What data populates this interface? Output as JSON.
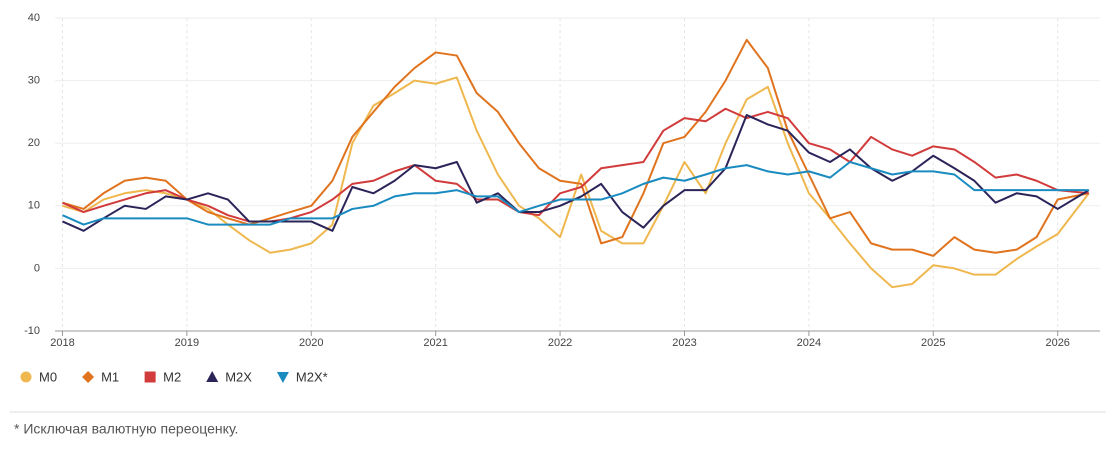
{
  "chart_data": {
    "type": "line",
    "x": [
      2018,
      2018.17,
      2018.33,
      2018.5,
      2018.67,
      2018.83,
      2019,
      2019.17,
      2019.33,
      2019.5,
      2019.67,
      2019.83,
      2020,
      2020.17,
      2020.33,
      2020.5,
      2020.67,
      2020.83,
      2021,
      2021.17,
      2021.33,
      2021.5,
      2021.67,
      2021.83,
      2022,
      2022.17,
      2022.33,
      2022.5,
      2022.67,
      2022.83,
      2023,
      2023.17,
      2023.33,
      2023.5,
      2023.67,
      2023.83,
      2024,
      2024.17,
      2024.33,
      2024.5,
      2024.67,
      2024.83,
      2025,
      2025.17,
      2025.33,
      2025.5,
      2025.67,
      2025.83,
      2026,
      2026.25
    ],
    "series": [
      {
        "name": "M0",
        "color": "#efb84e",
        "marker": "circle",
        "values": [
          10,
          9,
          11,
          12,
          12.5,
          12,
          11,
          9.5,
          7,
          4.5,
          2.5,
          3,
          4,
          7,
          20,
          26,
          28,
          30,
          29.5,
          30.5,
          22,
          15,
          10,
          8,
          5,
          15,
          6,
          4,
          4,
          10,
          17,
          12,
          20,
          27,
          29,
          20,
          12,
          8,
          4,
          0,
          -3,
          -2.5,
          0.5,
          0,
          -1,
          -1,
          1.5,
          3.5,
          5.5,
          12
        ]
      },
      {
        "name": "M1",
        "color": "#e0731e",
        "marker": "diamond",
        "values": [
          10.5,
          9.5,
          12,
          14,
          14.5,
          14,
          11,
          9,
          8,
          7,
          8,
          9,
          10,
          14,
          21,
          25,
          29,
          32,
          34.5,
          34,
          28,
          25,
          20,
          16,
          14,
          13.5,
          4,
          5,
          12,
          20,
          21,
          25,
          30,
          36.5,
          32,
          22,
          15,
          8,
          9,
          4,
          3,
          3,
          2,
          5,
          3,
          2.5,
          3,
          5,
          11,
          12
        ]
      },
      {
        "name": "M2",
        "color": "#d13b3b",
        "marker": "square",
        "values": [
          10.5,
          9,
          10,
          11,
          12,
          12.5,
          11,
          10,
          8.5,
          7.5,
          7.5,
          8,
          9,
          11,
          13.5,
          14,
          15.5,
          16.5,
          14,
          13.5,
          11,
          11,
          9,
          8.5,
          12,
          13,
          16,
          16.5,
          17,
          22,
          24,
          23.5,
          25.5,
          24,
          25,
          24,
          20,
          19,
          17,
          21,
          19,
          18,
          19.5,
          19,
          17,
          14.5,
          15,
          14,
          12.5,
          12
        ]
      },
      {
        "name": "M2X",
        "color": "#2b2459",
        "marker": "triangle-up",
        "values": [
          7.5,
          6,
          8,
          10,
          9.5,
          11.5,
          11,
          12,
          11,
          7.5,
          7.5,
          7.5,
          7.5,
          6,
          13,
          12,
          14,
          16.5,
          16,
          17,
          10.5,
          12,
          9,
          9,
          10,
          11.5,
          13.5,
          9,
          6.5,
          10,
          12.5,
          12.5,
          16,
          24.5,
          23,
          22,
          18.5,
          17,
          19,
          16,
          14,
          15.5,
          18,
          16,
          14,
          10.5,
          12,
          11.5,
          9.5,
          12.5
        ]
      },
      {
        "name": "M2X*",
        "color": "#1a8bc0",
        "marker": "triangle-down",
        "values": [
          8.5,
          7,
          8,
          8,
          8,
          8,
          8,
          7,
          7,
          7,
          7,
          8,
          8,
          8,
          9.5,
          10,
          11.5,
          12,
          12,
          12.5,
          11.5,
          11.5,
          9,
          10,
          11,
          11,
          11,
          12,
          13.5,
          14.5,
          14,
          15,
          16,
          16.5,
          15.5,
          15,
          15.5,
          14.5,
          17,
          16,
          15,
          15.5,
          15.5,
          15,
          12.5,
          12.5,
          12.5,
          12.5,
          12.5,
          12.5
        ]
      }
    ],
    "xlim": [
      2017.94,
      2026.34
    ],
    "xticks": [
      2018,
      2019,
      2020,
      2021,
      2022,
      2023,
      2024,
      2025,
      2026
    ],
    "ylim": [
      -10,
      40
    ],
    "yticks": [
      -10,
      0,
      10,
      20,
      30,
      40
    ],
    "grid": true,
    "note": "* Исключая валютную переоценку."
  }
}
